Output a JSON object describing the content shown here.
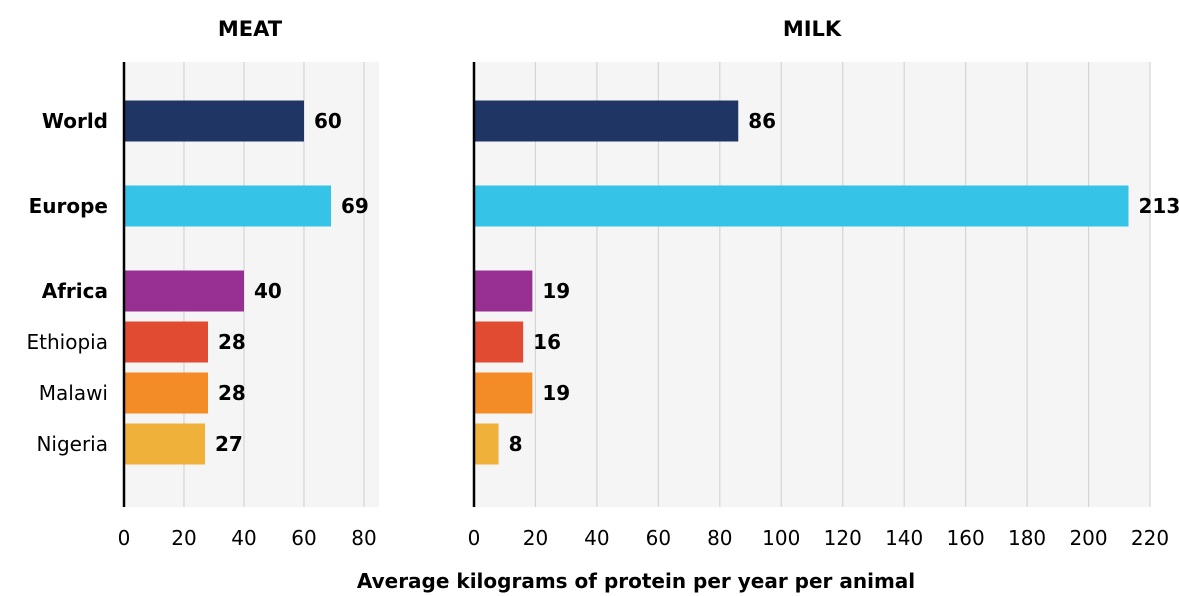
{
  "chart_data": {
    "type": "bar",
    "orientation": "horizontal",
    "xlabel": "Average kilograms of protein per year per animal",
    "categories": [
      "World",
      "Europe",
      "Africa",
      "Ethiopia",
      "Malawi",
      "Nigeria"
    ],
    "bold_categories": [
      "World",
      "Europe",
      "Africa"
    ],
    "colors": [
      "#1f3564",
      "#35c4e8",
      "#982f92",
      "#e04b32",
      "#f38b27",
      "#f0b13a"
    ],
    "grid": true,
    "panels": [
      {
        "title": "MEAT",
        "values": [
          60,
          69,
          40,
          28,
          28,
          27
        ],
        "xlim": [
          0,
          85
        ],
        "xticks": [
          0,
          20,
          40,
          60,
          80
        ]
      },
      {
        "title": "MILK",
        "values": [
          86,
          213,
          19,
          16,
          19,
          8
        ],
        "xlim": [
          0,
          220
        ],
        "xticks": [
          0,
          20,
          40,
          60,
          80,
          100,
          120,
          140,
          160,
          180,
          200,
          220
        ]
      }
    ]
  }
}
